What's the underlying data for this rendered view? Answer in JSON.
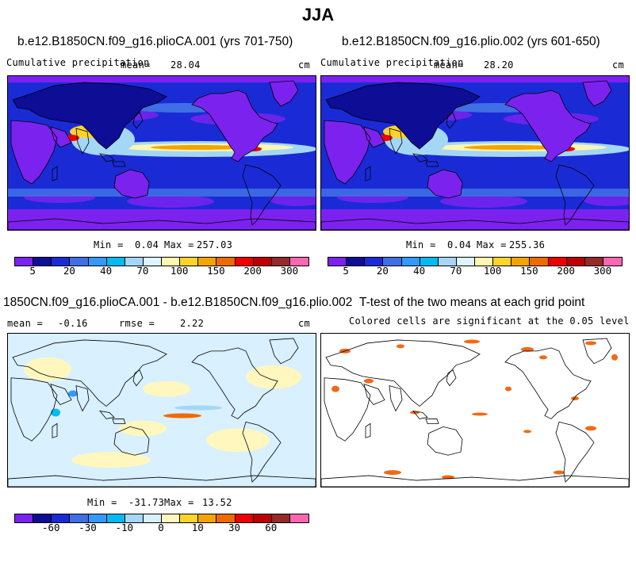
{
  "title": "JJA",
  "panels": [
    {
      "title": "b.e12.B1850CN.f09_g16.plioCA.001 (yrs 701-750)",
      "subtitle": "Cumulative precipitation",
      "mean_label": "mean=",
      "mean_value": "28.04",
      "units": "cm",
      "min_label": "Min =",
      "min_value": "0.04",
      "max_label": "Max =",
      "max_value": "257.03",
      "colorbar_ticks": [
        "5",
        "20",
        "40",
        "70",
        "100",
        "150",
        "200",
        "300"
      ]
    },
    {
      "title": "b.e12.B1850CN.f09_g16.plio.002 (yrs 601-650)",
      "subtitle": "Cumulative precipitation",
      "mean_label": "mean=",
      "mean_value": "28.20",
      "units": "cm",
      "min_label": "Min =",
      "min_value": "0.04",
      "max_label": "Max =",
      "max_value": "255.36",
      "colorbar_ticks": [
        "5",
        "20",
        "40",
        "70",
        "100",
        "150",
        "200",
        "300"
      ]
    },
    {
      "title": "1850CN.f09_g16.plioCA.001 - b.e12.B1850CN.f09_g16.plio.002",
      "mean_label": "mean =",
      "mean_value": "-0.16",
      "rmse_label": "rmse =",
      "rmse_value": "2.22",
      "units": "cm",
      "min_label": "Min =",
      "min_value": "-31.73",
      "max_label": "Max =",
      "max_value": "13.52",
      "colorbar_ticks": [
        "-60",
        "-30",
        "-10",
        "0",
        "10",
        "30",
        "60"
      ]
    },
    {
      "title": "T-test of the two means at each grid point",
      "subtitle": "Colored cells are significant at the 0.05 level"
    }
  ],
  "colors": {
    "precip_scale": [
      "#7b22ef",
      "#0d0d96",
      "#1a2bd6",
      "#3f6ee6",
      "#3399ff",
      "#00bbf0",
      "#a4d7f5",
      "#ddf5ff",
      "#fff6b0",
      "#ffd42a",
      "#f3a400",
      "#ef6a00",
      "#ee0000",
      "#bf0000",
      "#952a2a",
      "#ff66b2"
    ],
    "diff_scale": [
      "#7b22ef",
      "#0d0d96",
      "#1a2bd6",
      "#3f6ee6",
      "#3399ff",
      "#00bbf0",
      "#a4d7f5",
      "#d8f0ff",
      "#fff7be",
      "#ffd42a",
      "#f3a400",
      "#ef6a00",
      "#ee0000",
      "#bf0000",
      "#952a2a",
      "#ff66b2"
    ],
    "significance": "#f06a16",
    "coastline": "#000000"
  }
}
